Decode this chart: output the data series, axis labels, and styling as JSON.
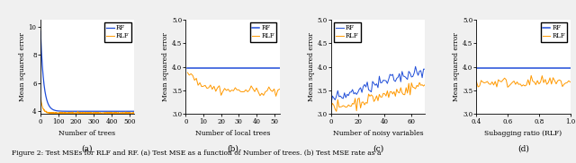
{
  "fig_width": 6.4,
  "fig_height": 1.82,
  "dpi": 100,
  "rf_color": "#1f4dd8",
  "rlf_color": "#ff9900",
  "background": "#f0f0f0",
  "caption": "Figure 2: Test MSEs for RLF and RF. (a) Test MSE as a function of Number of trees. (b) Test MSE rate as a",
  "plots": [
    {
      "xlabel": "Number of trees",
      "ylabel": "Mean squared error",
      "xlim": [
        0,
        525
      ],
      "ylim": [
        3.8,
        10.5
      ],
      "yticks": [
        4,
        6,
        8,
        10
      ],
      "xticks": [
        0,
        100,
        200,
        300,
        400,
        500
      ],
      "label": "(a)"
    },
    {
      "xlabel": "Number of local trees",
      "ylabel": "Mean squared error",
      "xlim": [
        0,
        53
      ],
      "ylim": [
        3.0,
        5.0
      ],
      "yticks": [
        3.0,
        3.5,
        4.0,
        4.5,
        5.0
      ],
      "xticks": [
        0,
        10,
        20,
        30,
        40,
        50
      ],
      "label": "(b)"
    },
    {
      "xlabel": "Number of noisy variables",
      "ylabel": "Mean squared error",
      "xlim": [
        0,
        70
      ],
      "ylim": [
        3.0,
        5.0
      ],
      "yticks": [
        3.0,
        3.5,
        4.0,
        4.5,
        5.0
      ],
      "xticks": [
        0,
        20,
        40,
        60
      ],
      "label": "(c)"
    },
    {
      "xlabel": "Subagging ratio (RLF)",
      "ylabel": "Mean squared error",
      "xlim": [
        0.4,
        1.0
      ],
      "ylim": [
        3.0,
        5.0
      ],
      "yticks": [
        3.0,
        3.5,
        4.0,
        4.5,
        5.0
      ],
      "xticks": [
        0.4,
        0.6,
        0.8,
        1.0
      ],
      "label": "(d)"
    }
  ]
}
